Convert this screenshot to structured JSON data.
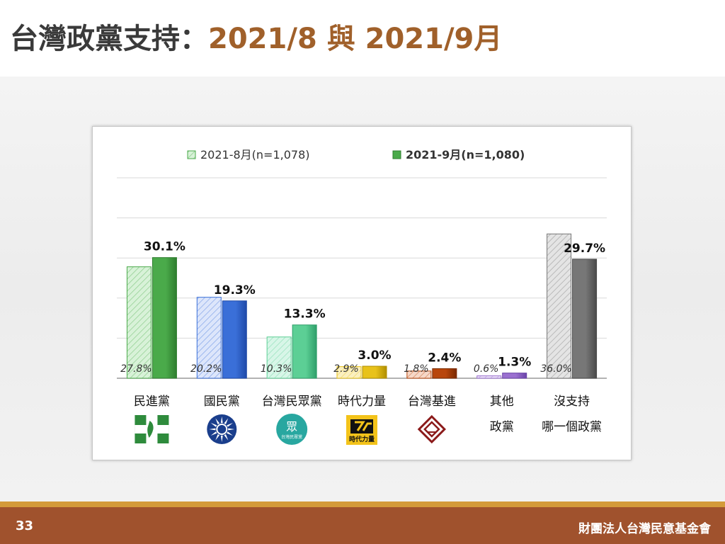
{
  "header": {
    "title_main": "台灣政黨支持：",
    "title_accent": "2021/8 與 2021/9月"
  },
  "footer": {
    "page_number": "33",
    "organization": "財團法人台灣民意基金會"
  },
  "colors": {
    "title": "#3a3a3a",
    "title_accent": "#a0602a",
    "footer_bg": "#a0522d",
    "footer_stripe": "#d49a3a"
  },
  "chart_data": {
    "type": "bar",
    "title": "",
    "xlabel": "",
    "ylabel": "",
    "ylim": [
      0,
      50
    ],
    "grid": true,
    "legend_position": "top",
    "categories": [
      [
        "民進黨"
      ],
      [
        "國民黨"
      ],
      [
        "台灣民眾黨"
      ],
      [
        "時代力量"
      ],
      [
        "台灣基進"
      ],
      [
        "其他",
        "政黨"
      ],
      [
        "沒支持",
        "哪一個政黨"
      ]
    ],
    "series": [
      {
        "name": "2021-8月(n=1,078)",
        "style": "hatched-light",
        "values": [
          27.8,
          20.2,
          10.3,
          2.9,
          1.8,
          0.6,
          36.0
        ],
        "labels": [
          "27.8%",
          "20.2%",
          "10.3%",
          "2.9%",
          "1.8%",
          "0.6%",
          "36.0%"
        ]
      },
      {
        "name": "2021-9月(n=1,080)",
        "style": "solid",
        "values": [
          30.1,
          19.3,
          13.3,
          3.0,
          2.4,
          1.3,
          29.7
        ],
        "labels": [
          "30.1%",
          "19.3%",
          "13.3%",
          "3.0%",
          "2.4%",
          "1.3%",
          "29.7%"
        ]
      }
    ],
    "category_colors": [
      "#4aaa4a",
      "#3a6fd8",
      "#5ccf95",
      "#e8c21a",
      "#b8460c",
      "#9a70d0",
      "#777777"
    ],
    "category_colors_dark": [
      "#2f7d2f",
      "#1f4aa8",
      "#2f9f6a",
      "#b08e00",
      "#7a2a00",
      "#6a44a8",
      "#4a4a4a"
    ],
    "category_colors_light": [
      "#d8f2d8",
      "#dde6fb",
      "#d8f6e8",
      "#fbf0c0",
      "#f6d8c8",
      "#ece2f8",
      "#e4e4e4"
    ]
  },
  "logos": [
    {
      "name": "dpp-logo-icon",
      "color": "#2e8b3c"
    },
    {
      "name": "kmt-logo-icon",
      "color": "#1a3e8c"
    },
    {
      "name": "tpp-logo-icon",
      "color": "#28a7a0",
      "text": "台灣民眾黨"
    },
    {
      "name": "npp-logo-icon",
      "color": "#f3c31a",
      "text": "時代力量"
    },
    {
      "name": "tsp-logo-icon",
      "color": "#8b1a1a"
    }
  ]
}
